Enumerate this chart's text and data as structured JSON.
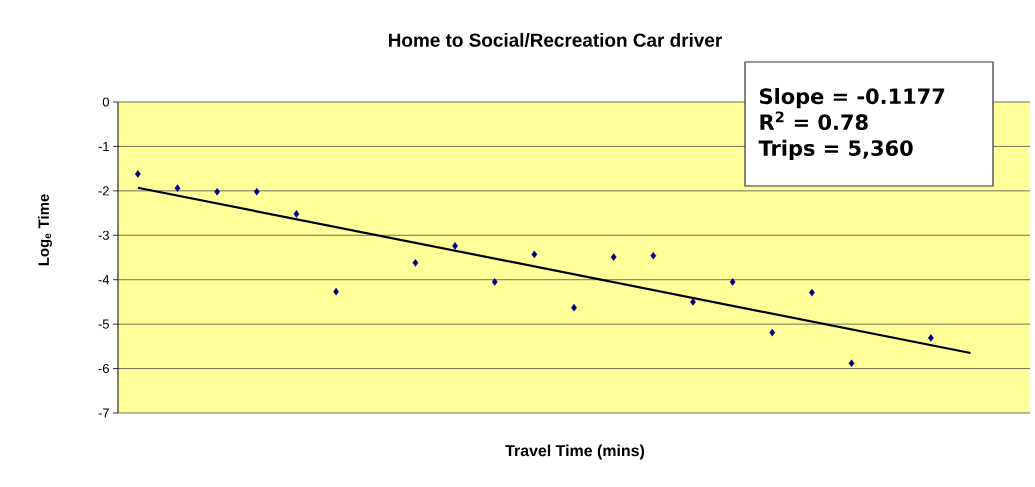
{
  "chart_data": {
    "type": "scatter",
    "title": "Home to Social/Recreation Car driver",
    "xlabel": "Travel Time (mins)",
    "ylabel": "Log$_{e}$ Time",
    "categories": [
      null,
      null,
      null,
      null,
      null,
      null,
      null,
      null,
      null,
      null,
      null,
      null,
      null,
      null,
      null,
      null,
      null,
      null,
      null,
      null,
      null,
      null,
      null
    ],
    "series": [
      {
        "type": "scatter",
        "color": "#000080",
        "marker": "diamond",
        "values": [
          -1.62,
          -1.94,
          -2.02,
          -2.02,
          -2.52,
          -4.27,
          null,
          -3.62,
          -3.24,
          -4.05,
          -3.43,
          -4.63,
          -3.49,
          -3.46,
          -4.5,
          -4.05,
          -5.19,
          -4.29,
          -5.88,
          null,
          -5.31,
          null,
          null
        ]
      },
      {
        "type": "line",
        "color": "#000000",
        "line_style": "solid",
        "values": [
          -1.93,
          null,
          null,
          null,
          null,
          null,
          null,
          null,
          null,
          null,
          null,
          null,
          null,
          null,
          null,
          null,
          null,
          null,
          null,
          null,
          null,
          -5.65,
          null
        ]
      }
    ],
    "ylim": [
      -7,
      0
    ],
    "yticks": [
      0,
      -1,
      -2,
      -3,
      -4,
      -5,
      -6,
      -7
    ],
    "grid": "y",
    "tick_labels": "y",
    "annotations": [
      "Slope = -0.1177",
      "R$^{2}$ = 0.78",
      "Trips = 5,360"
    ]
  }
}
